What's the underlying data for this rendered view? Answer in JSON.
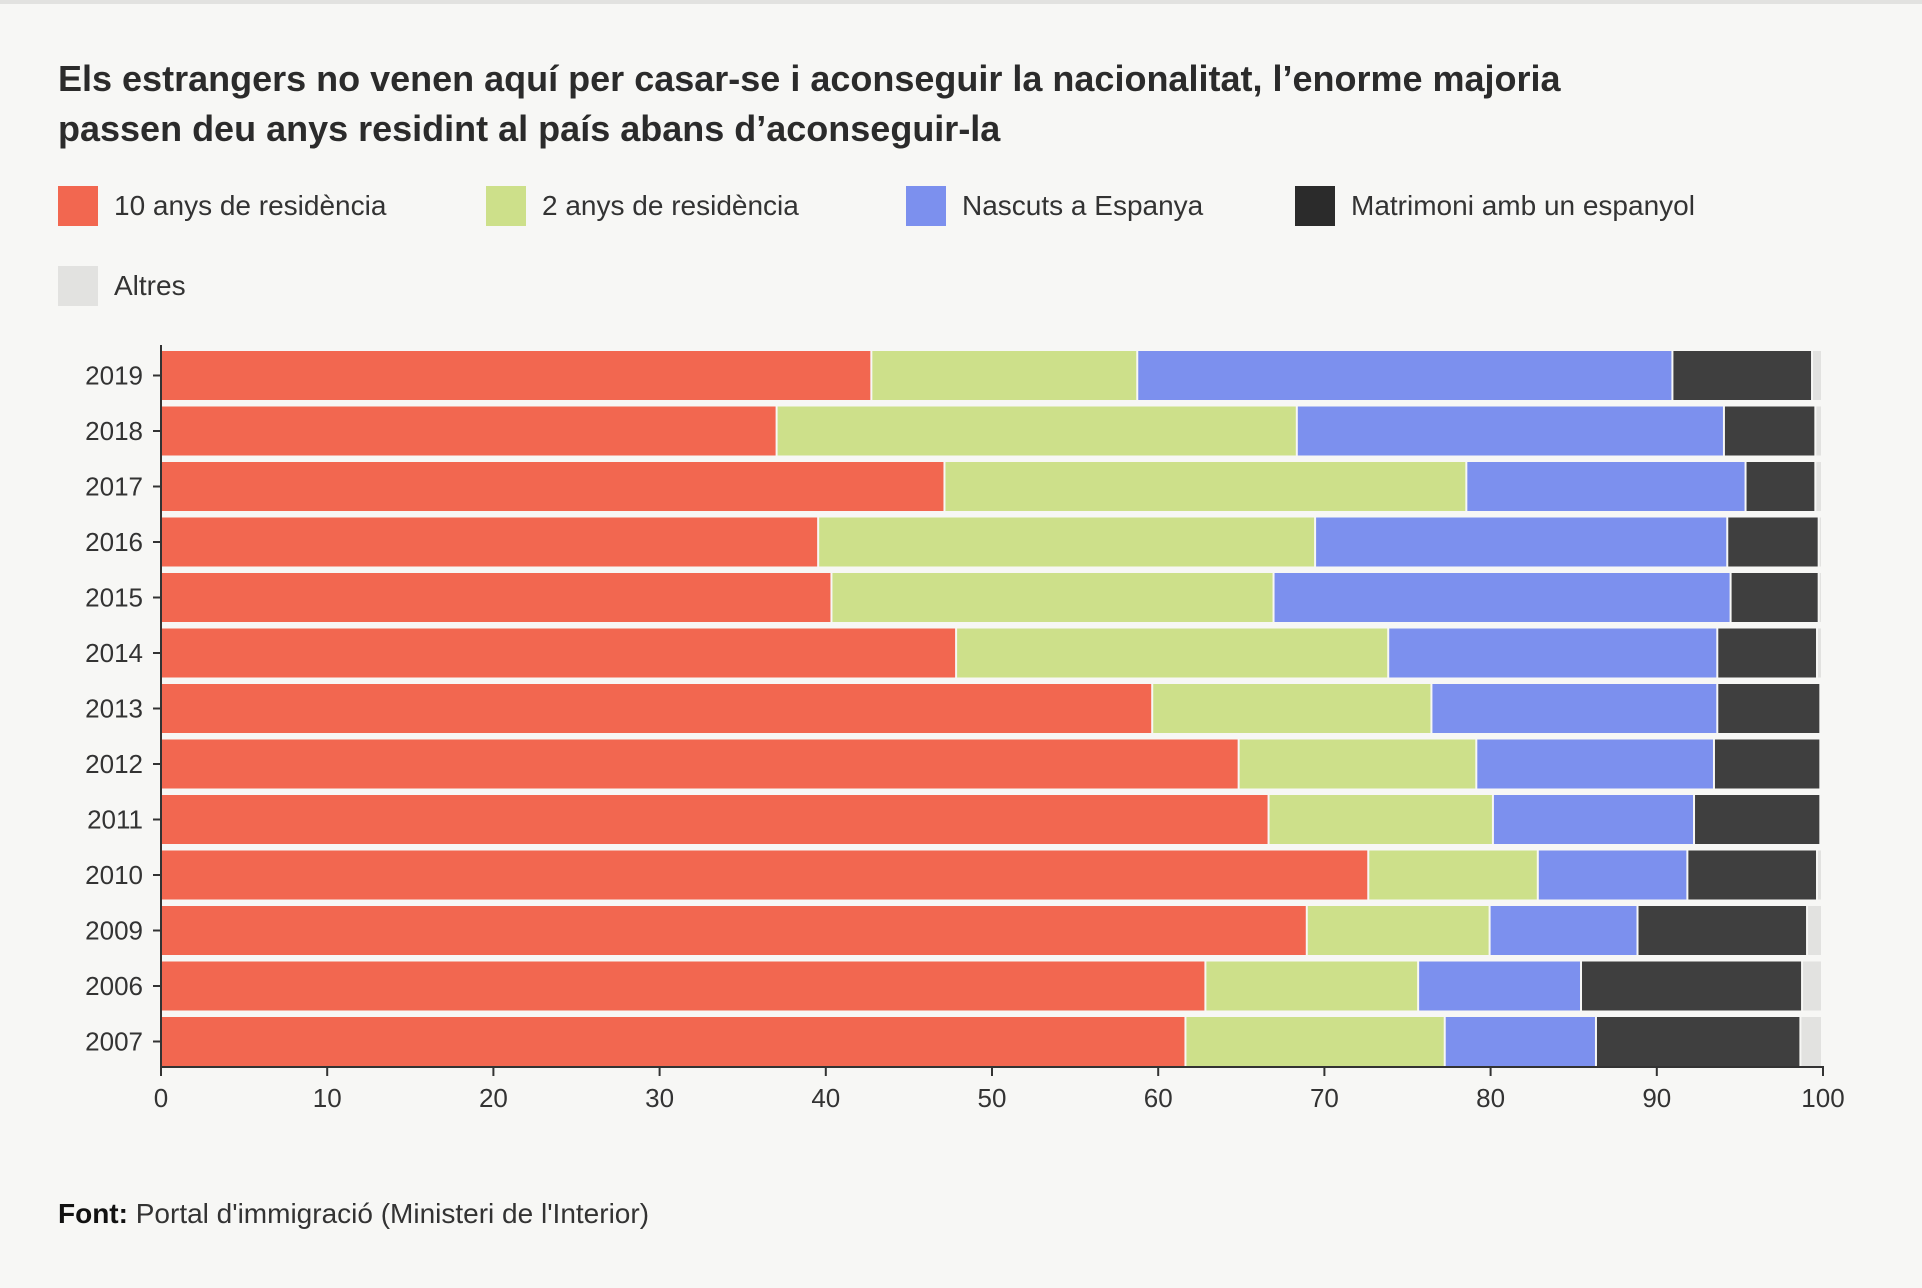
{
  "chart_data": {
    "type": "bar",
    "orientation": "horizontal",
    "stacked": true,
    "title": "Els estrangers no venen aquí per casar-se i aconseguir la nacionalitat, l’enorme majoria passen deu anys residint al país abans d’aconseguir-la",
    "title_lines": [
      "Els estrangers no venen aquí per casar-se i aconseguir la nacionalitat, l’enorme majoria",
      "passen deu anys residint al país abans d’aconseguir-la"
    ],
    "categories": [
      "2019",
      "2018",
      "2017",
      "2016",
      "2015",
      "2014",
      "2013",
      "2012",
      "2011",
      "2010",
      "2009",
      "2006",
      "2007"
    ],
    "series": [
      {
        "name": "10 anys de residència",
        "color": "#f26750",
        "values": [
          42.8,
          37.1,
          47.2,
          39.6,
          40.4,
          47.9,
          59.7,
          64.9,
          66.7,
          72.7,
          69.0,
          62.9,
          61.7
        ]
      },
      {
        "name": "2 anys de residència",
        "color": "#cde08a",
        "values": [
          16.0,
          31.3,
          31.4,
          29.9,
          26.6,
          26.0,
          16.8,
          14.3,
          13.5,
          10.2,
          11.0,
          12.8,
          15.6
        ]
      },
      {
        "name": "Nascuts a Espanya",
        "color": "#7c90ee",
        "values": [
          32.2,
          25.7,
          16.8,
          24.8,
          27.5,
          19.8,
          17.2,
          14.3,
          12.1,
          9.0,
          8.9,
          9.8,
          9.1
        ]
      },
      {
        "name": "Matrimoni amb un espanyol",
        "color": "#3f3f3f",
        "values": [
          8.4,
          5.5,
          4.2,
          5.5,
          5.3,
          6.0,
          6.2,
          6.4,
          7.6,
          7.8,
          10.2,
          13.3,
          12.3
        ]
      },
      {
        "name": "Altres",
        "color": "#e2e2e0",
        "values": [
          0.6,
          0.4,
          0.4,
          0.2,
          0.2,
          0.3,
          0.1,
          0.1,
          0.1,
          0.3,
          0.9,
          1.2,
          1.3
        ]
      }
    ],
    "xlim": [
      0,
      100
    ],
    "xticks": [
      "0",
      "10",
      "20",
      "30",
      "40",
      "50",
      "60",
      "70",
      "80",
      "90",
      "100"
    ],
    "grid": false,
    "legend_position": "top"
  },
  "footer": {
    "label": "Font:",
    "text": " Portal d'immigració (Ministeri de l'Interior)"
  }
}
